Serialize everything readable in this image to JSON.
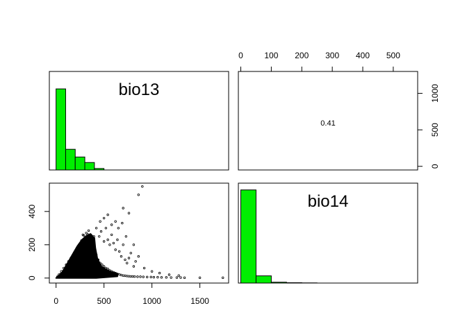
{
  "chart_data": [
    {
      "type": "bar",
      "panel": "diagonal-top-left",
      "title": "bio13",
      "bin_edges": [
        0,
        100,
        200,
        300,
        400,
        500
      ],
      "values": [
        1000,
        255,
        160,
        92,
        18
      ],
      "bar_color": "#00ee00",
      "axes_shown": false
    },
    {
      "type": "bar",
      "panel": "diagonal-bottom-right",
      "title": "bio14",
      "bin_edges": [
        0,
        50,
        100,
        150,
        200,
        250
      ],
      "values": [
        1100,
        85,
        10,
        4,
        2
      ],
      "bar_color": "#00ee00",
      "axes_shown": false
    },
    {
      "type": "text",
      "panel": "upper-right",
      "label": "0.41",
      "top_axis": {
        "ticks": [
          0,
          100,
          200,
          300,
          400,
          500
        ],
        "range": [
          -8,
          580
        ]
      },
      "right_axis": {
        "ticks": [
          0,
          500,
          1000
        ],
        "range": [
          -50,
          1300
        ]
      }
    },
    {
      "type": "scatter",
      "panel": "lower-left",
      "xlabel": "bio13",
      "ylabel": "bio14",
      "xlim": [
        -70,
        1800
      ],
      "ylim": [
        -30,
        570
      ],
      "x_ticks": [
        0,
        500,
        1000,
        1500
      ],
      "y_ticks": [
        0,
        200,
        400
      ],
      "points": [
        [
          20,
          5
        ],
        [
          35,
          12
        ],
        [
          48,
          25
        ],
        [
          60,
          18
        ],
        [
          72,
          40
        ],
        [
          85,
          35
        ],
        [
          95,
          55
        ],
        [
          110,
          48
        ],
        [
          120,
          70
        ],
        [
          135,
          62
        ],
        [
          148,
          90
        ],
        [
          160,
          80
        ],
        [
          172,
          110
        ],
        [
          185,
          95
        ],
        [
          198,
          130
        ],
        [
          210,
          118
        ],
        [
          222,
          150
        ],
        [
          235,
          140
        ],
        [
          248,
          170
        ],
        [
          260,
          160
        ],
        [
          272,
          185
        ],
        [
          285,
          175
        ],
        [
          298,
          200
        ],
        [
          310,
          190
        ],
        [
          322,
          215
        ],
        [
          335,
          205
        ],
        [
          348,
          230
        ],
        [
          360,
          220
        ],
        [
          372,
          240
        ],
        [
          385,
          232
        ],
        [
          395,
          250
        ],
        [
          240,
          200
        ],
        [
          265,
          225
        ],
        [
          290,
          255
        ],
        [
          315,
          270
        ],
        [
          340,
          285
        ],
        [
          280,
          260
        ],
        [
          305,
          240
        ],
        [
          330,
          262
        ],
        [
          355,
          248
        ],
        [
          230,
          180
        ],
        [
          205,
          160
        ],
        [
          180,
          140
        ],
        [
          155,
          120
        ],
        [
          130,
          100
        ],
        [
          105,
          80
        ],
        [
          80,
          60
        ],
        [
          55,
          40
        ],
        [
          30,
          20
        ],
        [
          15,
          8
        ],
        [
          400,
          20
        ],
        [
          420,
          140
        ],
        [
          440,
          110
        ],
        [
          460,
          90
        ],
        [
          480,
          80
        ],
        [
          500,
          70
        ],
        [
          520,
          60
        ],
        [
          540,
          55
        ],
        [
          560,
          45
        ],
        [
          580,
          40
        ],
        [
          600,
          35
        ],
        [
          620,
          30
        ],
        [
          640,
          25
        ],
        [
          660,
          22
        ],
        [
          680,
          18
        ],
        [
          700,
          15
        ],
        [
          720,
          14
        ],
        [
          740,
          12
        ],
        [
          760,
          11
        ],
        [
          780,
          10
        ],
        [
          800,
          10
        ],
        [
          820,
          9
        ],
        [
          850,
          8
        ],
        [
          880,
          8
        ],
        [
          910,
          7
        ],
        [
          950,
          6
        ],
        [
          990,
          6
        ],
        [
          1020,
          5
        ],
        [
          1060,
          5
        ],
        [
          1100,
          4
        ],
        [
          1150,
          4
        ],
        [
          1200,
          3
        ],
        [
          1260,
          3
        ],
        [
          1300,
          3
        ],
        [
          1340,
          2
        ],
        [
          1500,
          2
        ],
        [
          1740,
          2
        ],
        [
          420,
          300
        ],
        [
          450,
          250
        ],
        [
          470,
          280
        ],
        [
          500,
          220
        ],
        [
          520,
          300
        ],
        [
          540,
          230
        ],
        [
          560,
          200
        ],
        [
          580,
          260
        ],
        [
          600,
          210
        ],
        [
          620,
          170
        ],
        [
          640,
          230
        ],
        [
          660,
          160
        ],
        [
          680,
          130
        ],
        [
          700,
          200
        ],
        [
          720,
          110
        ],
        [
          740,
          90
        ],
        [
          760,
          120
        ],
        [
          780,
          150
        ],
        [
          810,
          70
        ],
        [
          830,
          100
        ],
        [
          580,
          320
        ],
        [
          700,
          420
        ],
        [
          760,
          390
        ],
        [
          860,
          500
        ],
        [
          900,
          550
        ],
        [
          620,
          340
        ],
        [
          460,
          340
        ],
        [
          500,
          360
        ],
        [
          540,
          380
        ],
        [
          650,
          300
        ],
        [
          690,
          330
        ],
        [
          730,
          250
        ],
        [
          810,
          200
        ],
        [
          860,
          130
        ],
        [
          920,
          60
        ],
        [
          1000,
          40
        ],
        [
          1080,
          30
        ],
        [
          1180,
          20
        ],
        [
          1280,
          15
        ]
      ],
      "density_cloud": [
        [
          0,
          0
        ],
        [
          60,
          30
        ],
        [
          120,
          90
        ],
        [
          170,
          140
        ],
        [
          220,
          190
        ],
        [
          270,
          230
        ],
        [
          320,
          255
        ],
        [
          360,
          265
        ],
        [
          400,
          240
        ],
        [
          410,
          180
        ],
        [
          430,
          120
        ],
        [
          470,
          70
        ],
        [
          560,
          40
        ],
        [
          640,
          25
        ],
        [
          640,
          10
        ],
        [
          420,
          0
        ],
        [
          200,
          0
        ],
        [
          60,
          0
        ]
      ]
    }
  ]
}
